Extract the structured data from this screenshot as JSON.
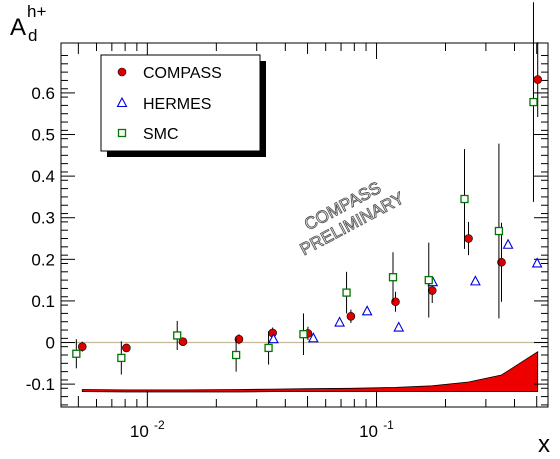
{
  "chart_data": {
    "type": "scatter",
    "title": "",
    "ylabel_base": "A",
    "ylabel_sup": "h+",
    "ylabel_sub": "d",
    "xlabel": "x",
    "xscale": "log",
    "xlim": [
      0.0042,
      0.56
    ],
    "ylim": [
      -0.155,
      0.72
    ],
    "y_ticks": [
      -0.1,
      0,
      0.1,
      0.2,
      0.3,
      0.4,
      0.5,
      0.6
    ],
    "y_tick_labels": [
      "-0.1",
      "0",
      "0.1",
      "0.2",
      "0.3",
      "0.4",
      "0.5",
      "0.6"
    ],
    "x_tick_labels": [
      {
        "value": 0.01,
        "base": "10",
        "exp": "-2"
      },
      {
        "value": 0.1,
        "base": "10",
        "exp": "-1"
      }
    ],
    "watermark": [
      "COMPASS",
      "PRELIMINARY"
    ],
    "legend_position": "top-left",
    "series": [
      {
        "name": "COMPASS",
        "marker": "circle",
        "color": "#dd0000",
        "points": [
          {
            "x": 0.0052,
            "y": -0.01,
            "err": 0.012
          },
          {
            "x": 0.0081,
            "y": -0.013,
            "err": 0.01
          },
          {
            "x": 0.0143,
            "y": 0.002,
            "err": 0.01
          },
          {
            "x": 0.0251,
            "y": 0.008,
            "err": 0.012
          },
          {
            "x": 0.0352,
            "y": 0.023,
            "err": 0.013
          },
          {
            "x": 0.0502,
            "y": 0.022,
            "err": 0.016
          },
          {
            "x": 0.0773,
            "y": 0.063,
            "err": 0.016
          },
          {
            "x": 0.121,
            "y": 0.098,
            "err": 0.024
          },
          {
            "x": 0.175,
            "y": 0.125,
            "err": 0.03
          },
          {
            "x": 0.252,
            "y": 0.25,
            "err": 0.04
          },
          {
            "x": 0.351,
            "y": 0.193,
            "err": 0.095
          },
          {
            "x": 0.505,
            "y": 0.632,
            "err": 0.09
          }
        ]
      },
      {
        "name": "HERMES",
        "marker": "triangle",
        "color": "#0000dd",
        "points": [
          {
            "x": 0.0355,
            "y": 0.008
          },
          {
            "x": 0.053,
            "y": 0.01
          },
          {
            "x": 0.069,
            "y": 0.048
          },
          {
            "x": 0.091,
            "y": 0.075
          },
          {
            "x": 0.125,
            "y": 0.036
          },
          {
            "x": 0.176,
            "y": 0.145
          },
          {
            "x": 0.27,
            "y": 0.147
          },
          {
            "x": 0.375,
            "y": 0.235
          },
          {
            "x": 0.502,
            "y": 0.19
          }
        ]
      },
      {
        "name": "SMC",
        "marker": "square",
        "color": "#007700",
        "points": [
          {
            "x": 0.0049,
            "y": -0.027,
            "err": 0.035
          },
          {
            "x": 0.0077,
            "y": -0.037,
            "err": 0.04
          },
          {
            "x": 0.0135,
            "y": 0.017,
            "err": 0.035
          },
          {
            "x": 0.0244,
            "y": -0.03,
            "err": 0.04
          },
          {
            "x": 0.0338,
            "y": -0.013,
            "err": 0.04
          },
          {
            "x": 0.048,
            "y": 0.02,
            "err": 0.05
          },
          {
            "x": 0.074,
            "y": 0.12,
            "err": 0.05
          },
          {
            "x": 0.118,
            "y": 0.157,
            "err": 0.06
          },
          {
            "x": 0.169,
            "y": 0.15,
            "err": 0.09
          },
          {
            "x": 0.242,
            "y": 0.345,
            "err": 0.12
          },
          {
            "x": 0.342,
            "y": 0.268,
            "err": 0.21
          },
          {
            "x": 0.484,
            "y": 0.578,
            "err": 0.24
          }
        ]
      }
    ],
    "systematic_band": {
      "color": "#ee0000",
      "x": [
        0.0052,
        0.0081,
        0.0143,
        0.0251,
        0.0352,
        0.0502,
        0.0773,
        0.121,
        0.175,
        0.252,
        0.351,
        0.505
      ],
      "upper": [
        -0.113,
        -0.114,
        -0.114,
        -0.113,
        -0.112,
        -0.111,
        -0.11,
        -0.108,
        -0.104,
        -0.095,
        -0.078,
        -0.022
      ],
      "lower": [
        -0.118,
        -0.119,
        -0.119,
        -0.119,
        -0.118,
        -0.118,
        -0.118,
        -0.118,
        -0.118,
        -0.118,
        -0.118,
        -0.118
      ]
    }
  }
}
